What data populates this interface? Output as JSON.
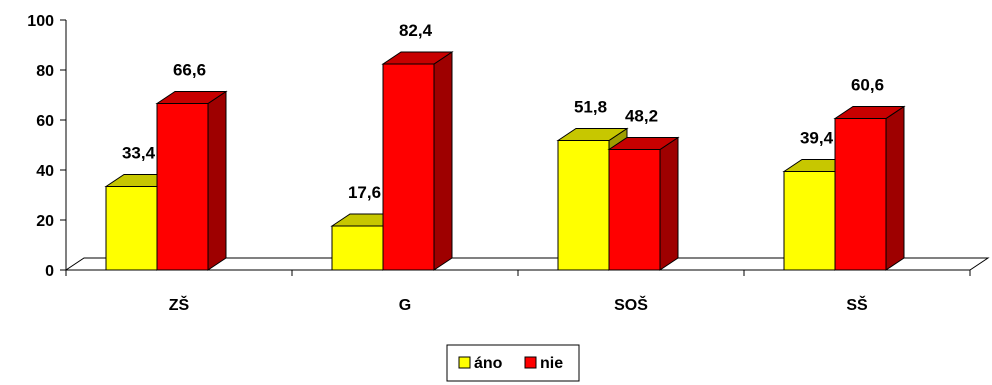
{
  "chart_data": {
    "type": "bar",
    "categories": [
      "ZŠ",
      "G",
      "SOŠ",
      "SŠ"
    ],
    "series": [
      {
        "name": "áno",
        "values": [
          33.4,
          17.6,
          51.8,
          39.4
        ],
        "labels": [
          "33,4",
          "17,6",
          "51,8",
          "39,4"
        ],
        "color": "#ffff00"
      },
      {
        "name": "nie",
        "values": [
          66.6,
          82.4,
          48.2,
          60.6
        ],
        "labels": [
          "66,6",
          "82,4",
          "48,2",
          "60,6"
        ],
        "color": "#ff0000"
      }
    ],
    "y_ticks": [
      "0",
      "20",
      "40",
      "60",
      "80",
      "100"
    ],
    "ylim": [
      0,
      100
    ],
    "legend_position": "bottom",
    "grid": false,
    "style": "3d-columns"
  }
}
